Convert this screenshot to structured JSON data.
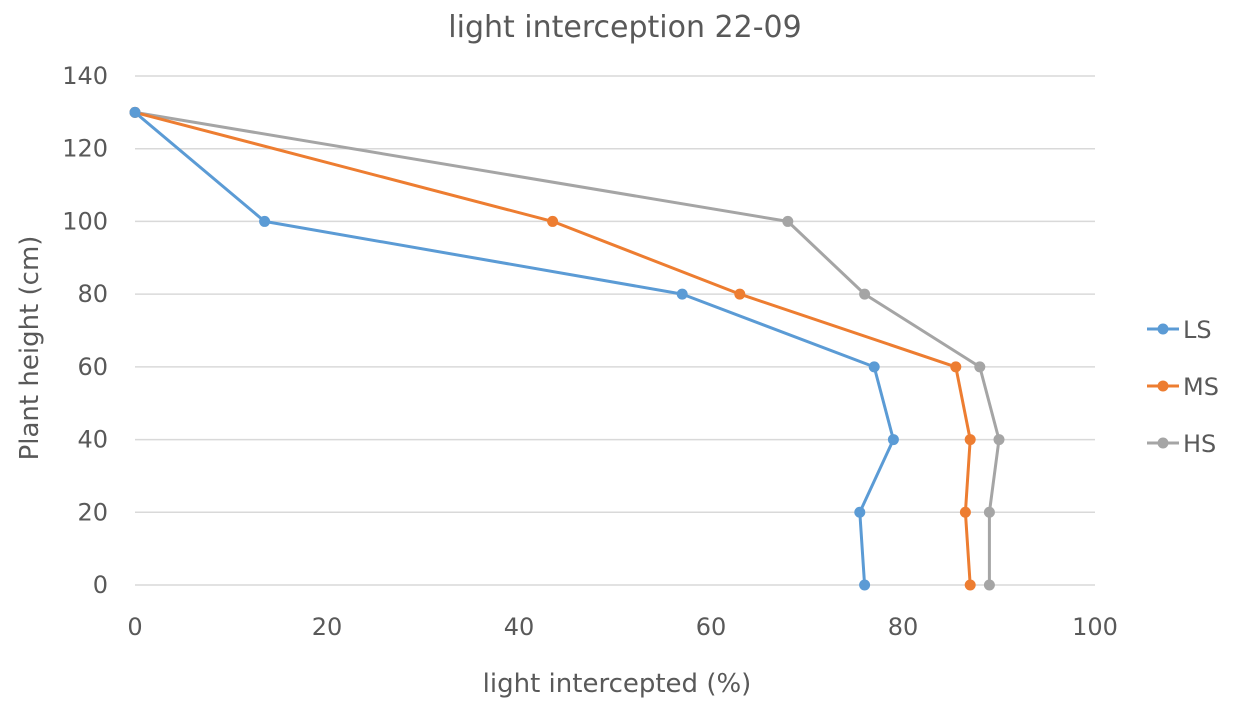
{
  "chart_data": {
    "type": "line",
    "title": "light interception 22-09",
    "xlabel": "light intercepted (%)",
    "ylabel": "Plant height (cm)",
    "xlim": [
      0,
      100
    ],
    "ylim": [
      0,
      140
    ],
    "xticks": [
      "0",
      "20",
      "40",
      "60",
      "80",
      "100"
    ],
    "yticks": [
      "0",
      "20",
      "40",
      "60",
      "80",
      "100",
      "120",
      "140"
    ],
    "grid": "horizontal",
    "legend_position": "right",
    "series": [
      {
        "name": "LS",
        "color": "#5b9bd5",
        "points": [
          [
            76,
            0
          ],
          [
            75.5,
            20
          ],
          [
            79,
            40
          ],
          [
            77,
            60
          ],
          [
            57,
            80
          ],
          [
            13.5,
            100
          ],
          [
            0,
            130
          ]
        ]
      },
      {
        "name": "MS",
        "color": "#ed7d31",
        "points": [
          [
            87,
            0
          ],
          [
            86.5,
            20
          ],
          [
            87,
            40
          ],
          [
            85.5,
            60
          ],
          [
            63,
            80
          ],
          [
            43.5,
            100
          ],
          [
            0,
            130
          ]
        ]
      },
      {
        "name": "HS",
        "color": "#a5a5a5",
        "points": [
          [
            89,
            0
          ],
          [
            89,
            20
          ],
          [
            90,
            40
          ],
          [
            88,
            60
          ],
          [
            76,
            80
          ],
          [
            68,
            100
          ],
          [
            0,
            130
          ]
        ]
      }
    ]
  }
}
